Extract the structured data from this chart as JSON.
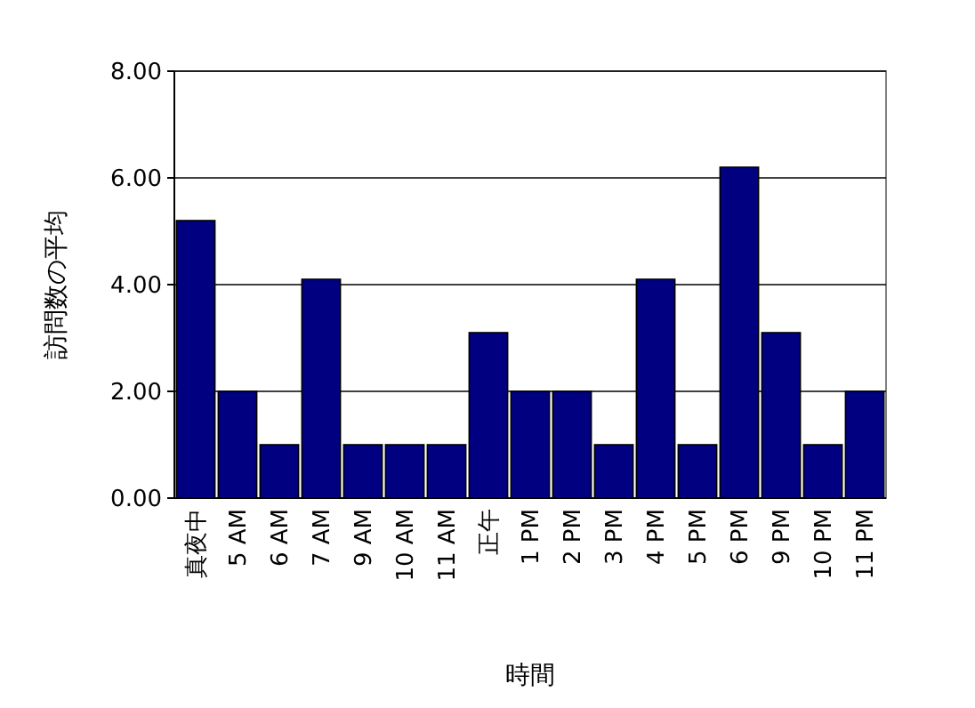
{
  "chart_data": {
    "type": "bar",
    "xlabel": "時間",
    "ylabel": "訪問数の平均",
    "categories": [
      "真夜中",
      "5 AM",
      "6 AM",
      "7 AM",
      "9 AM",
      "10 AM",
      "11 AM",
      "正午",
      "1 PM",
      "2 PM",
      "3 PM",
      "4 PM",
      "5 PM",
      "6 PM",
      "9 PM",
      "10 PM",
      "11 PM"
    ],
    "values": [
      5.2,
      2,
      1,
      4.1,
      1,
      1,
      1,
      3.1,
      2,
      2,
      1,
      4.1,
      1,
      6.2,
      3.1,
      1,
      2
    ],
    "color": "#000080",
    "ylim": [
      0,
      8
    ],
    "yticks": [
      {
        "value": 0,
        "label": "0.00"
      },
      {
        "value": 2,
        "label": "2.00"
      },
      {
        "value": 4,
        "label": "4.00"
      },
      {
        "value": 6,
        "label": "6.00"
      },
      {
        "value": 8,
        "label": "8.00"
      }
    ],
    "grid": "y"
  }
}
